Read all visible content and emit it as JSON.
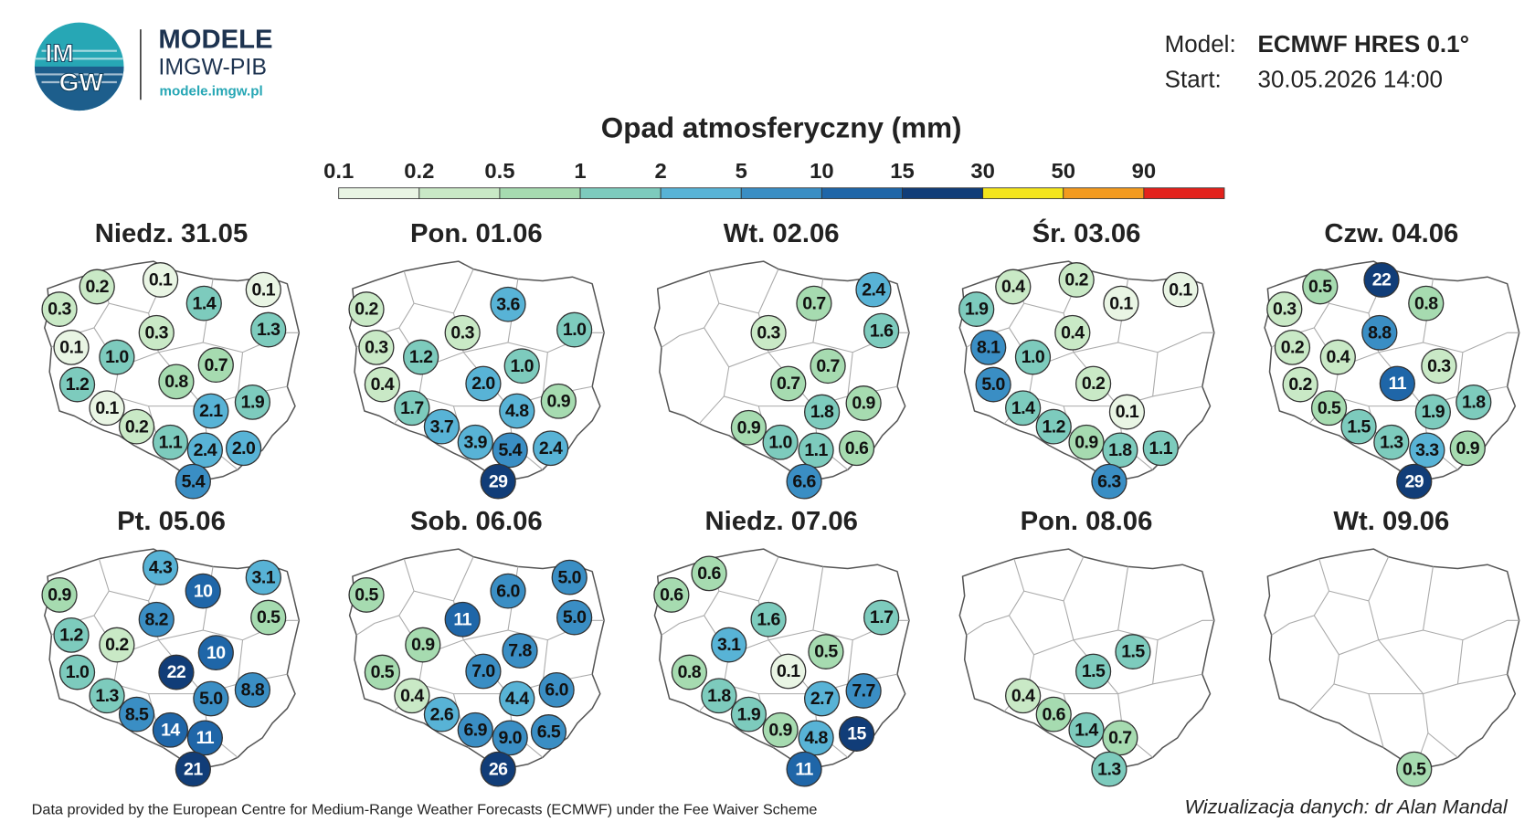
{
  "header": {
    "logo": {
      "line1": "IM",
      "line2": "GW"
    },
    "brand": "MODELE",
    "org": "IMGW-PIB",
    "url": "modele.imgw.pl"
  },
  "model_info": {
    "model_label": "Model:",
    "model": "ECMWF HRES 0.1°",
    "start_label": "Start:",
    "start": "30.05.2026 14:00"
  },
  "legend": {
    "title": "Opad atmosferyczny (mm)",
    "ticks": [
      "0.1",
      "0.2",
      "0.5",
      "1",
      "2",
      "5",
      "10",
      "15",
      "30",
      "50",
      "90"
    ],
    "colors": [
      "#e9f5e4",
      "#c9e9c6",
      "#a6dbb0",
      "#7dcbbd",
      "#58b3d6",
      "#3a8ec4",
      "#1f66a8",
      "#113d78",
      "#f4e51c",
      "#f39a1f",
      "#e3221c"
    ]
  },
  "panels": [
    {
      "title": "Niedz. 31.05",
      "values": [
        "0.2",
        "0.1",
        "0.1",
        "0.3",
        "1.4",
        "1.3",
        "0.3",
        "0.1",
        "1.0",
        "0.7",
        "1.2",
        "0.8",
        "1.9",
        "0.1",
        "2.1",
        "0.2",
        "1.1",
        "2.4",
        "2.0",
        "5.4"
      ]
    },
    {
      "title": "Pon. 01.06",
      "values": [
        "0.2",
        "3.6",
        "1.0",
        "0.3",
        "0.3",
        "1.2",
        "1.0",
        "0.4",
        "2.0",
        "1.7",
        "4.8",
        "0.9",
        "3.7",
        "3.9",
        "5.4",
        "2.4",
        "29"
      ]
    },
    {
      "title": "Wt. 02.06",
      "values": [
        "2.4",
        "0.7",
        "1.6",
        "0.3",
        "0.7",
        "0.7",
        "1.8",
        "0.9",
        "0.9",
        "1.0",
        "1.1",
        "0.6",
        "6.6"
      ]
    },
    {
      "title": "Śr. 03.06",
      "values": [
        "0.4",
        "0.2",
        "0.1",
        "1.9",
        "0.1",
        "0.4",
        "8.1",
        "1.0",
        "0.2",
        "5.0",
        "1.4",
        "0.1",
        "1.2",
        "0.9",
        "1.8",
        "1.1",
        "6.3"
      ]
    },
    {
      "title": "Czw. 04.06",
      "values": [
        "0.5",
        "22",
        "0.3",
        "0.8",
        "8.8",
        "0.2",
        "0.4",
        "0.3",
        "0.2",
        "11",
        "0.5",
        "1.9",
        "1.8",
        "1.5",
        "1.3",
        "3.3",
        "0.9",
        "29"
      ]
    },
    {
      "title": "Pt. 05.06",
      "values": [
        "4.3",
        "10",
        "3.1",
        "0.9",
        "8.2",
        "0.5",
        "1.2",
        "0.2",
        "10",
        "22",
        "1.0",
        "5.0",
        "8.8",
        "1.3",
        "8.5",
        "14",
        "11",
        "21"
      ]
    },
    {
      "title": "Sob. 06.06",
      "values": [
        "0.5",
        "6.0",
        "5.0",
        "11",
        "5.0",
        "0.9",
        "7.8",
        "0.5",
        "7.0",
        "0.4",
        "4.4",
        "6.0",
        "2.6",
        "6.9",
        "9.0",
        "6.5",
        "26"
      ]
    },
    {
      "title": "Niedz. 07.06",
      "values": [
        "0.6",
        "0.6",
        "1.6",
        "1.7",
        "3.1",
        "0.5",
        "0.8",
        "0.1",
        "2.7",
        "7.7",
        "1.8",
        "1.9",
        "0.9",
        "4.8",
        "15",
        "11"
      ]
    },
    {
      "title": "Pon. 08.06",
      "values": [
        "1.5",
        "1.5",
        "0.4",
        "0.6",
        "1.4",
        "0.7",
        "1.3"
      ]
    },
    {
      "title": "Wt. 09.06",
      "values": [
        "0.5"
      ]
    }
  ],
  "footer": {
    "credit": "Data provided by the European Centre for Medium-Range Weather Forecasts (ECMWF) under the Fee Waiver Scheme",
    "author": "Wizualizacja danych: dr Alan Mandal"
  }
}
